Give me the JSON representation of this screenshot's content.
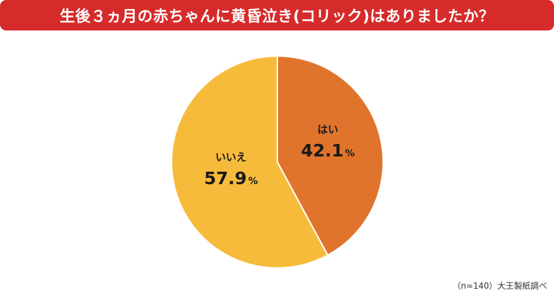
{
  "title": "生後３ヵ月の赤ちゃんに黄昏泣き(コリック)はありましたか？",
  "source_note": "（n=140）大王製紙調べ",
  "colors": {
    "title_bg": "#d62b2b",
    "title_text": "#ffffff",
    "slice_border": "#ffffff"
  },
  "chart_data": {
    "type": "pie",
    "title": "生後３ヵ月の赤ちゃんに黄昏泣き(コリック)はありましたか？",
    "unit": "%",
    "start": "12 o'clock, clockwise",
    "slices": [
      {
        "label": "はい",
        "value": 42.1,
        "display": "42.1",
        "color": "#e0742c"
      },
      {
        "label": "いいえ",
        "value": 57.9,
        "display": "57.9",
        "color": "#f7bb3b"
      }
    ]
  }
}
